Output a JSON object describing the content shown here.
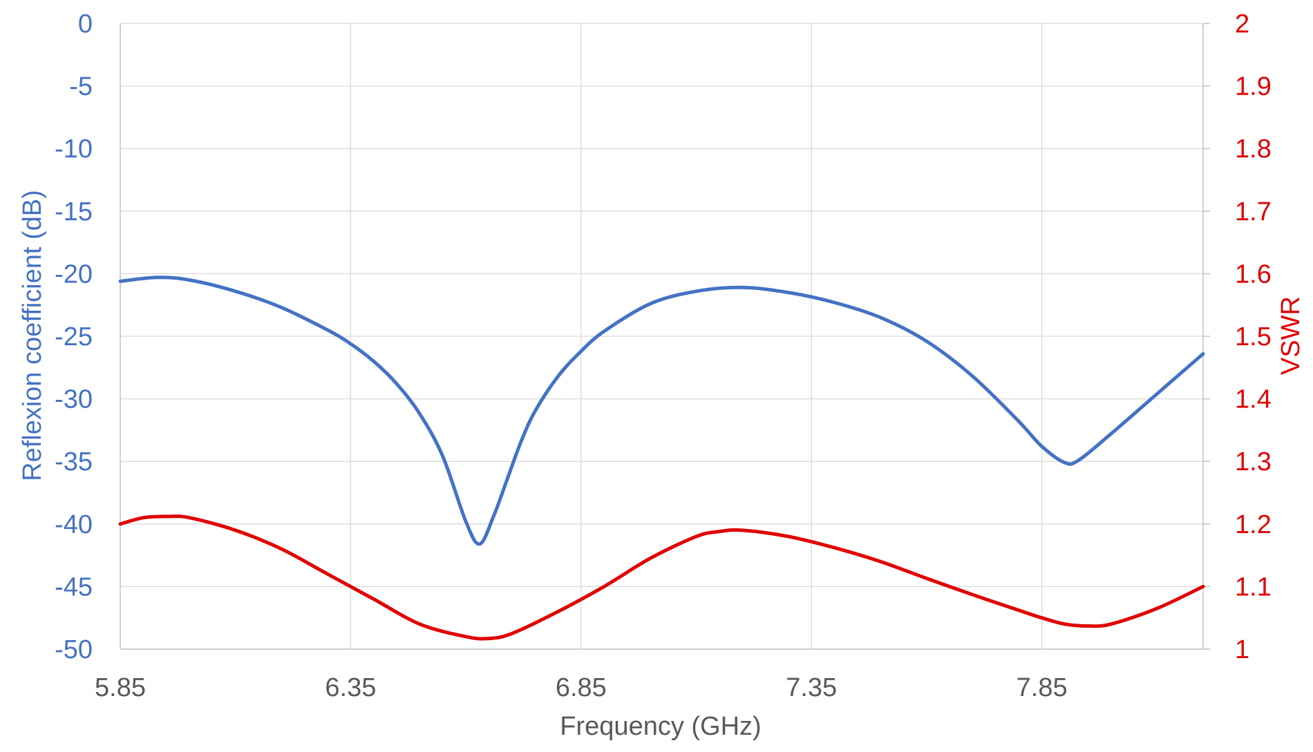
{
  "chart_data": {
    "type": "line",
    "title": "",
    "xlabel": "Frequency (GHz)",
    "ylabel": "Reflexion coefficient (dB)",
    "ylabel_right": "VSWR",
    "xlim": [
      5.85,
      8.2
    ],
    "x_ticks": [
      "5.85",
      "6.35",
      "6.85",
      "7.35",
      "7.85"
    ],
    "x_tick_values": [
      5.85,
      6.35,
      6.85,
      7.35,
      7.85
    ],
    "ylim": [
      -50,
      0
    ],
    "y_ticks": [
      "0",
      "-5",
      "-10",
      "-15",
      "-20",
      "-25",
      "-30",
      "-35",
      "-40",
      "-45",
      "-50"
    ],
    "y_tick_values": [
      0,
      -5,
      -10,
      -15,
      -20,
      -25,
      -30,
      -35,
      -40,
      -45,
      -50
    ],
    "ylim_right": [
      1,
      2
    ],
    "y_ticks_right": [
      "2",
      "1.9",
      "1.8",
      "1.7",
      "1.6",
      "1.5",
      "1.4",
      "1.3",
      "1.2",
      "1.1",
      "1"
    ],
    "y_tick_values_right": [
      2,
      1.9,
      1.8,
      1.7,
      1.6,
      1.5,
      1.4,
      1.3,
      1.2,
      1.1,
      1
    ],
    "grid": true,
    "legend": "none",
    "series": [
      {
        "axis": "left",
        "color": "#4472c4",
        "x": [
          5.85,
          5.93,
          6.0,
          6.1,
          6.2,
          6.3,
          6.35,
          6.4,
          6.45,
          6.5,
          6.55,
          6.6,
          6.63,
          6.66,
          6.69,
          6.72,
          6.75,
          6.8,
          6.85,
          6.9,
          7.0,
          7.1,
          7.2,
          7.3,
          7.4,
          7.5,
          7.6,
          7.7,
          7.8,
          7.85,
          7.9,
          7.93,
          8.0,
          8.1,
          8.2
        ],
        "y": [
          -20.6,
          -20.3,
          -20.5,
          -21.4,
          -22.7,
          -24.5,
          -25.6,
          -27.0,
          -28.8,
          -31.2,
          -34.6,
          -39.8,
          -41.6,
          -39.4,
          -36.4,
          -33.4,
          -31.0,
          -28.2,
          -26.2,
          -24.6,
          -22.4,
          -21.4,
          -21.1,
          -21.5,
          -22.3,
          -23.5,
          -25.4,
          -28.2,
          -31.8,
          -33.8,
          -35.1,
          -34.9,
          -32.8,
          -29.6,
          -26.4
        ]
      },
      {
        "axis": "right",
        "color": "#e00000",
        "x": [
          5.85,
          5.9,
          5.95,
          6.0,
          6.1,
          6.2,
          6.3,
          6.4,
          6.5,
          6.6,
          6.65,
          6.7,
          6.8,
          6.9,
          7.0,
          7.1,
          7.15,
          7.2,
          7.3,
          7.4,
          7.5,
          7.6,
          7.7,
          7.8,
          7.85,
          7.9,
          7.95,
          8.0,
          8.1,
          8.2
        ],
        "y": [
          1.2,
          1.21,
          1.212,
          1.21,
          1.19,
          1.16,
          1.12,
          1.08,
          1.04,
          1.02,
          1.017,
          1.025,
          1.06,
          1.1,
          1.145,
          1.18,
          1.188,
          1.19,
          1.18,
          1.162,
          1.14,
          1.113,
          1.087,
          1.062,
          1.05,
          1.04,
          1.037,
          1.04,
          1.065,
          1.1
        ]
      }
    ]
  }
}
